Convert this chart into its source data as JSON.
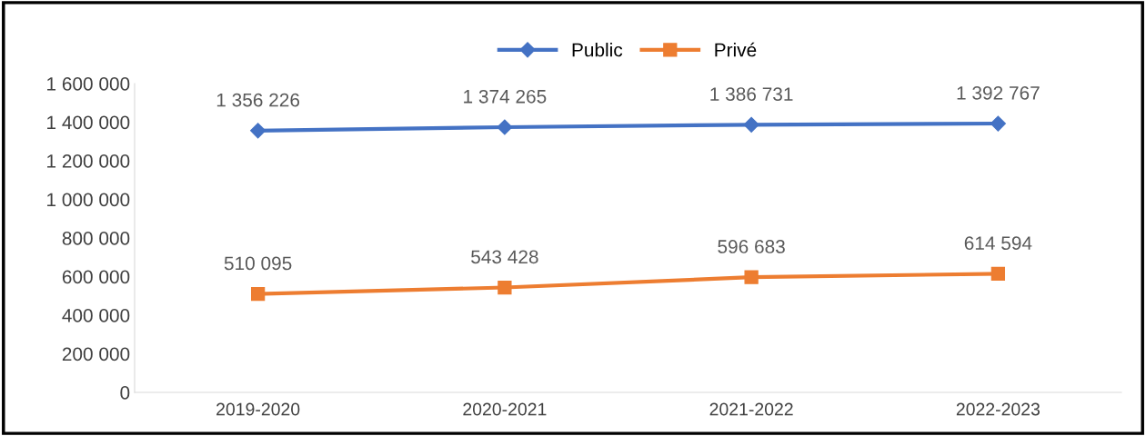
{
  "chart_data": {
    "type": "line",
    "categories": [
      "2019-2020",
      "2020-2021",
      "2021-2022",
      "2022-2023"
    ],
    "series": [
      {
        "name": "Public",
        "color": "#4472c4",
        "marker": "diamond",
        "values": [
          1356226,
          1374265,
          1386731,
          1392767
        ],
        "value_labels": [
          "1 356 226",
          "1 374 265",
          "1 386 731",
          "1 392 767"
        ]
      },
      {
        "name": "Privé",
        "color": "#ed7d31",
        "marker": "square",
        "values": [
          510095,
          543428,
          596683,
          614594
        ],
        "value_labels": [
          "510 095",
          "543 428",
          "596 683",
          "614 594"
        ]
      }
    ],
    "ylim": [
      0,
      1600000
    ],
    "yticks": [
      {
        "value": 0,
        "label": "0"
      },
      {
        "value": 200000,
        "label": "200 000"
      },
      {
        "value": 400000,
        "label": "400 000"
      },
      {
        "value": 600000,
        "label": "600 000"
      },
      {
        "value": 800000,
        "label": "800 000"
      },
      {
        "value": 1000000,
        "label": "1 000 000"
      },
      {
        "value": 1200000,
        "label": "1 200 000"
      },
      {
        "value": 1400000,
        "label": "1 400 000"
      },
      {
        "value": 1600000,
        "label": "1 600 000"
      }
    ],
    "grid": false,
    "legend": "top",
    "line_style": "solid"
  }
}
